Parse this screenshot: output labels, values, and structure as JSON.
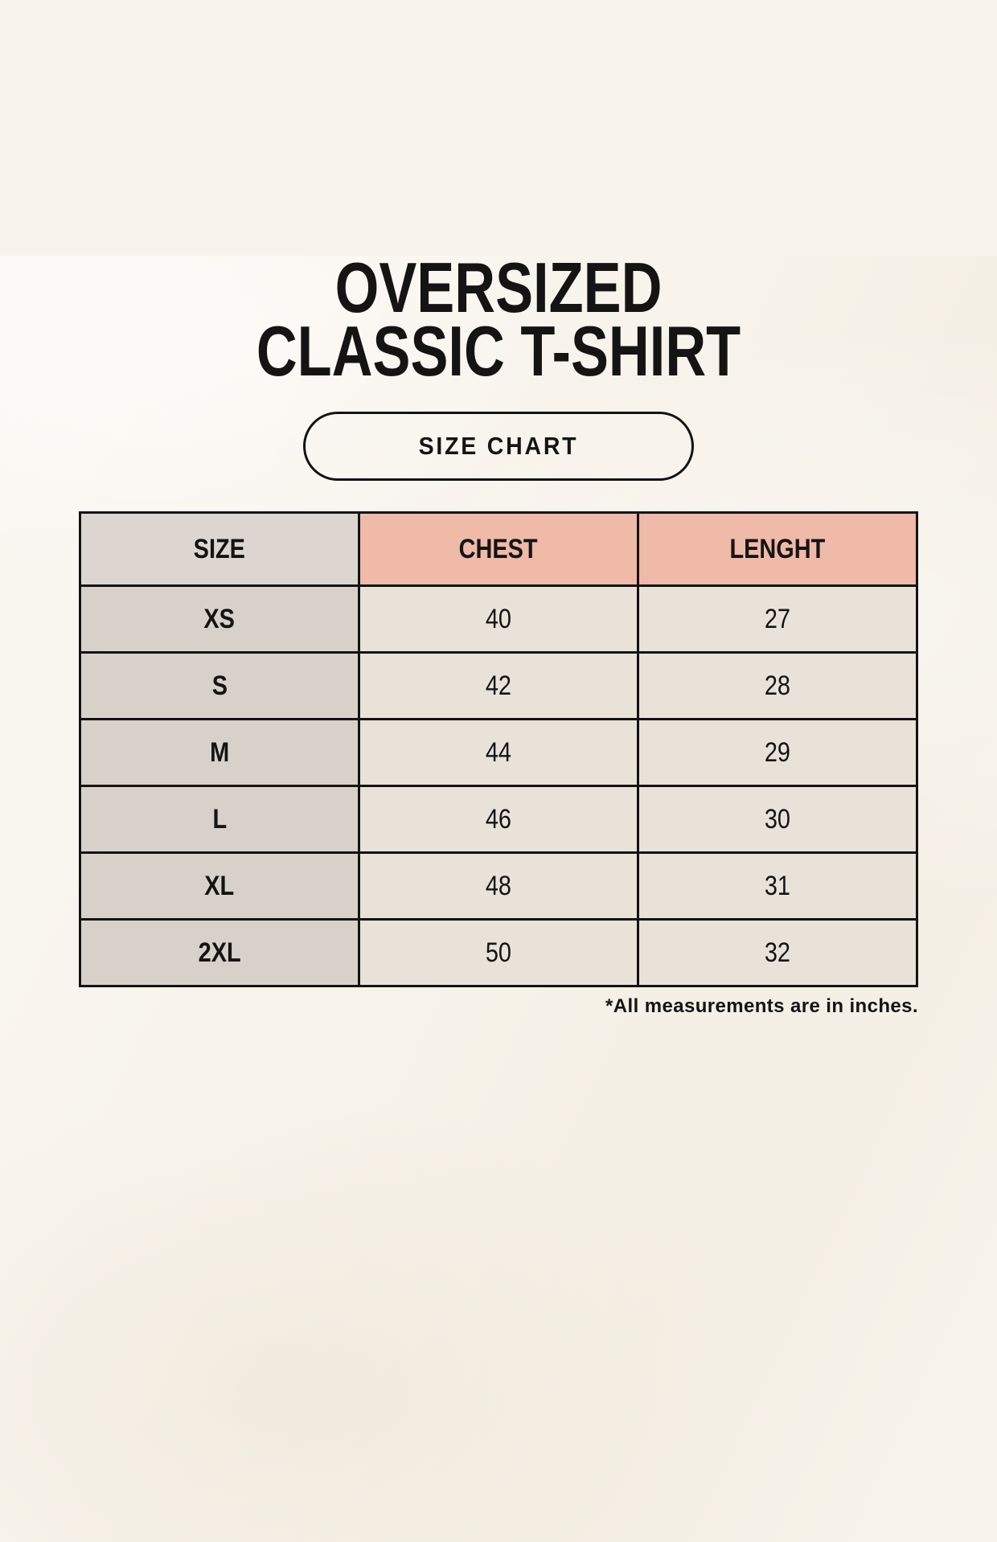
{
  "title": {
    "line1": "OVERSIZED",
    "line2": "CLASSIC T-SHIRT"
  },
  "size_chart_button": {
    "label": "SIZE CHART"
  },
  "table": {
    "columns": {
      "size": "SIZE",
      "chest": "CHEST",
      "lenght": "LENGHT"
    },
    "rows": [
      {
        "size": "XS",
        "chest": "40",
        "lenght": "27"
      },
      {
        "size": "S",
        "chest": "42",
        "lenght": "28"
      },
      {
        "size": "M",
        "chest": "44",
        "lenght": "29"
      },
      {
        "size": "L",
        "chest": "46",
        "lenght": "30"
      },
      {
        "size": "XL",
        "chest": "48",
        "lenght": "31"
      },
      {
        "size": "2XL",
        "chest": "50",
        "lenght": "32"
      }
    ]
  },
  "footnote": "*All measurements are in inches.",
  "colors": {
    "background": "#f8f4ec",
    "size_column_bg": "#d8d1ca",
    "size_header_bg": "#ddd6d0",
    "accent_header_bg": "#efbaa7",
    "value_cell_bg": "#e9e2d8",
    "border": "#131313",
    "text": "#141414"
  },
  "chart_data": {
    "type": "table",
    "title": "OVERSIZED CLASSIC T-SHIRT",
    "subtitle": "SIZE CHART",
    "columns": [
      "SIZE",
      "CHEST",
      "LENGHT"
    ],
    "rows": [
      [
        "XS",
        40,
        27
      ],
      [
        "S",
        42,
        28
      ],
      [
        "M",
        44,
        29
      ],
      [
        "L",
        46,
        30
      ],
      [
        "XL",
        48,
        31
      ],
      [
        "2XL",
        50,
        32
      ]
    ],
    "units": "inches",
    "note": "*All measurements are in inches."
  }
}
